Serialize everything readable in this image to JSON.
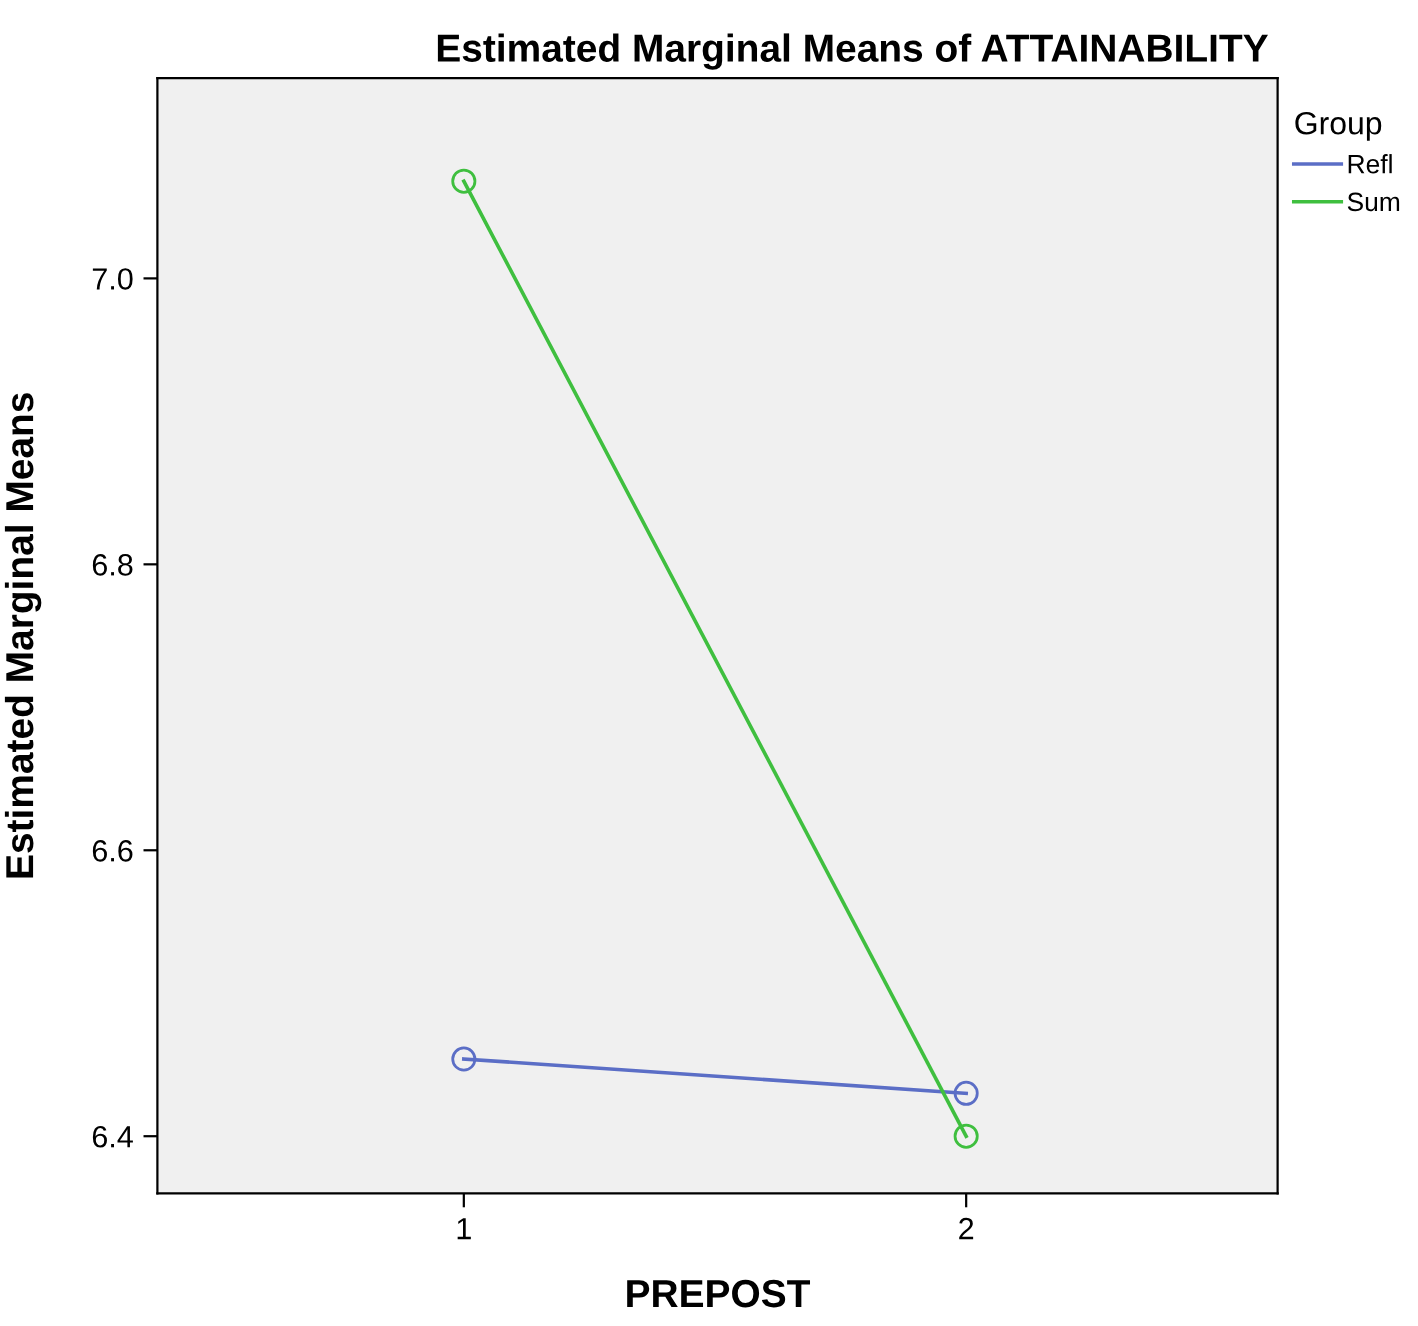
{
  "chart_data": {
    "type": "line",
    "title": "Estimated Marginal Means of ATTAINABILITY",
    "xlabel": "PREPOST",
    "ylabel": "Estimated Marginal Means",
    "legend_title": "Group",
    "categories": [
      "1",
      "2"
    ],
    "series": [
      {
        "name": "Refl",
        "color": "#5b6ec6",
        "values": [
          6.454,
          6.43
        ]
      },
      {
        "name": "Sum",
        "color": "#3fbf3f",
        "values": [
          7.068,
          6.4
        ]
      }
    ],
    "ylim": [
      6.36,
      7.14
    ],
    "yticks": [
      {
        "value": 6.4,
        "label": "6.4"
      },
      {
        "value": 6.6,
        "label": "6.6"
      },
      {
        "value": 6.8,
        "label": "6.8"
      },
      {
        "value": 7.0,
        "label": "7.0"
      }
    ],
    "grid": false,
    "legend": "top right",
    "marker": "circle",
    "line_style": "solid"
  }
}
